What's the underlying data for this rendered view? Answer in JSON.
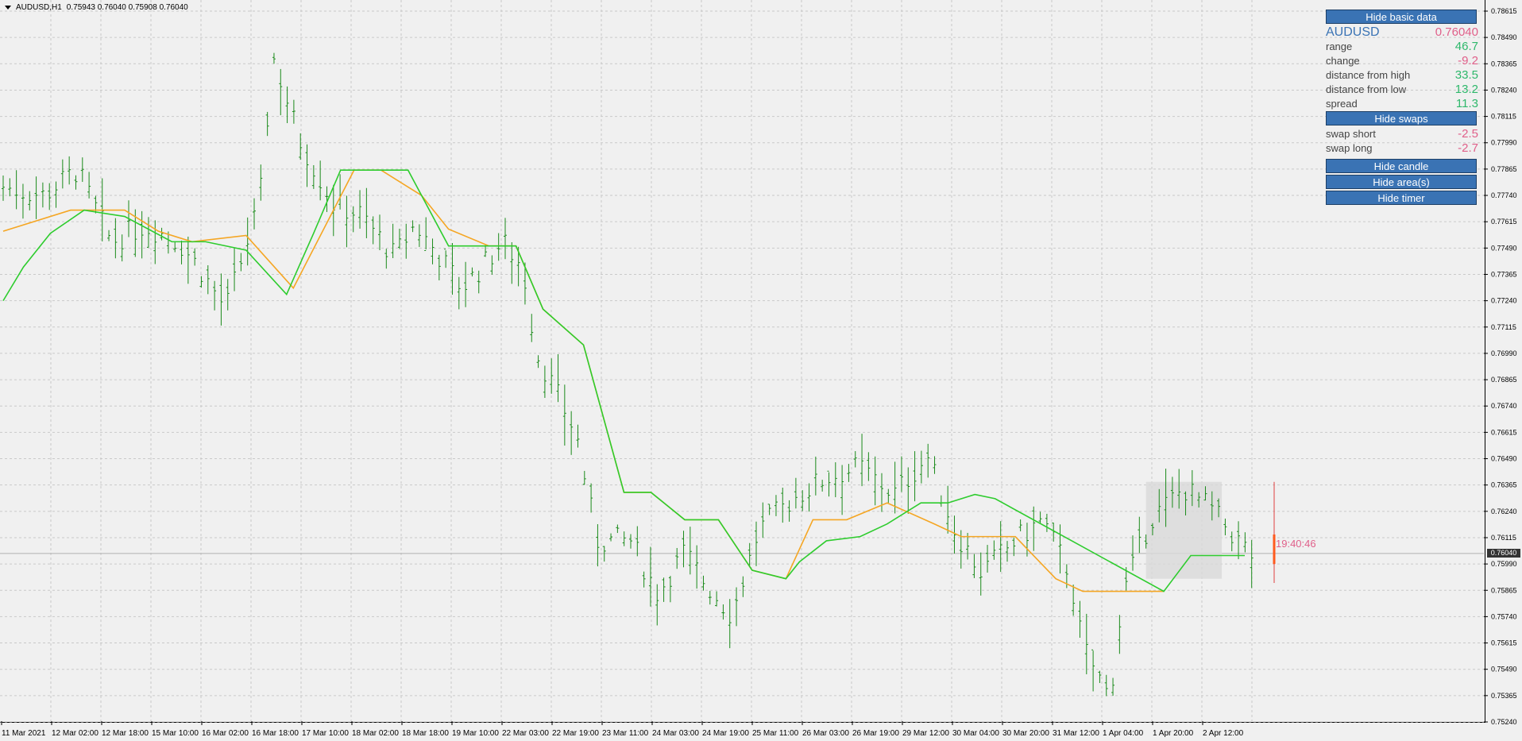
{
  "header": {
    "symbol_timeframe": "AUDUSD,H1",
    "ohlc": "0.75943 0.76040 0.75908 0.76040"
  },
  "panel": {
    "hide_basic_data": "Hide basic data",
    "symbol": "AUDUSD",
    "price": "0.76040",
    "rows": [
      {
        "label": "range",
        "value": "46.7",
        "tone": "pos"
      },
      {
        "label": "change",
        "value": "-9.2",
        "tone": "neg"
      },
      {
        "label": "distance from high",
        "value": "33.5",
        "tone": "pos"
      },
      {
        "label": "distance from low",
        "value": "13.2",
        "tone": "pos"
      },
      {
        "label": "spread",
        "value": "11.3",
        "tone": "pos"
      }
    ],
    "hide_swaps": "Hide swaps",
    "swaps": [
      {
        "label": "swap short",
        "value": "-2.5",
        "tone": "neg"
      },
      {
        "label": "swap long",
        "value": "-2.7",
        "tone": "neg"
      }
    ],
    "hide_candle": "Hide candle",
    "hide_areas": "Hide area(s)",
    "hide_timer": "Hide timer"
  },
  "timer": "19:40:46",
  "current_price_label": "0.76040",
  "colors": {
    "bars": "#1a8a1a",
    "resistance_line": "#f5a623",
    "support_line": "#2ecc2e",
    "timer": "#e0608a",
    "button": "#3a73b4",
    "background": "#f0f0f0",
    "range_box": "#d9d9d9"
  },
  "chart_data": {
    "type": "line",
    "title": "",
    "grid": true,
    "ylim": [
      0.7524,
      0.78615
    ],
    "y_ticks": [
      "0.78615",
      "0.78490",
      "0.78365",
      "0.78240",
      "0.78115",
      "0.77990",
      "0.77865",
      "0.77740",
      "0.77615",
      "0.77490",
      "0.77365",
      "0.77240",
      "0.77115",
      "0.76990",
      "0.76865",
      "0.76740",
      "0.76615",
      "0.76490",
      "0.76365",
      "0.76240",
      "0.76115",
      "0.75990",
      "0.75865",
      "0.75740",
      "0.75615",
      "0.75490",
      "0.75365",
      "0.75240"
    ],
    "x_ticks": [
      "11 Mar 2021",
      "12 Mar 02:00",
      "12 Mar 18:00",
      "15 Mar 10:00",
      "16 Mar 02:00",
      "16 Mar 18:00",
      "17 Mar 10:00",
      "18 Mar 02:00",
      "18 Mar 18:00",
      "19 Mar 10:00",
      "22 Mar 03:00",
      "22 Mar 19:00",
      "23 Mar 11:00",
      "24 Mar 03:00",
      "24 Mar 19:00",
      "25 Mar 11:00",
      "26 Mar 03:00",
      "26 Mar 19:00",
      "29 Mar 12:00",
      "30 Mar 04:00",
      "30 Mar 20:00",
      "31 Mar 12:00",
      "1 Apr 04:00",
      "1 Apr 20:00",
      "2 Apr 12:00"
    ],
    "price_path": [
      [
        0,
        0.7778
      ],
      [
        6,
        0.7774
      ],
      [
        11,
        0.7786
      ],
      [
        16,
        0.7752
      ],
      [
        21,
        0.776
      ],
      [
        26,
        0.7752
      ],
      [
        29,
        0.774
      ],
      [
        33,
        0.772
      ],
      [
        38,
        0.777
      ],
      [
        40,
        0.784
      ],
      [
        44,
        0.78
      ],
      [
        49,
        0.777
      ],
      [
        53,
        0.7765
      ],
      [
        58,
        0.7745
      ],
      [
        61,
        0.776
      ],
      [
        64,
        0.7748
      ],
      [
        68,
        0.773
      ],
      [
        71,
        0.774
      ],
      [
        74,
        0.7752
      ],
      [
        77,
        0.774
      ],
      [
        79,
        0.77
      ],
      [
        82,
        0.768
      ],
      [
        85,
        0.766
      ],
      [
        88,
        0.761
      ],
      [
        93,
        0.761
      ],
      [
        97,
        0.7585
      ],
      [
        101,
        0.7605
      ],
      [
        104,
        0.759
      ],
      [
        108,
        0.7575
      ],
      [
        112,
        0.7615
      ],
      [
        117,
        0.763
      ],
      [
        122,
        0.764
      ],
      [
        127,
        0.7645
      ],
      [
        132,
        0.7632
      ],
      [
        137,
        0.765
      ],
      [
        141,
        0.7615
      ],
      [
        145,
        0.7595
      ],
      [
        150,
        0.761
      ],
      [
        154,
        0.762
      ],
      [
        158,
        0.7595
      ],
      [
        160,
        0.756
      ],
      [
        164,
        0.7535
      ],
      [
        166,
        0.7585
      ],
      [
        170,
        0.762
      ],
      [
        175,
        0.7635
      ],
      [
        179,
        0.7625
      ],
      [
        183,
        0.761
      ],
      [
        186,
        0.76
      ]
    ],
    "series": [
      {
        "line": "resistance",
        "color": "#f5a623",
        "points": [
          [
            0,
            0.7757
          ],
          [
            10,
            0.7767
          ],
          [
            18,
            0.7767
          ],
          [
            23,
            0.7757
          ],
          [
            28,
            0.7752
          ],
          [
            36,
            0.7755
          ],
          [
            43,
            0.773
          ],
          [
            52,
            0.7786
          ],
          [
            56,
            0.7786
          ],
          [
            62,
            0.7774
          ],
          [
            66,
            0.7758
          ],
          [
            72,
            0.775
          ],
          [
            76,
            0.775
          ],
          [
            80,
            0.772
          ],
          [
            86,
            0.7703
          ],
          [
            92,
            0.7633
          ],
          [
            96,
            0.7633
          ],
          [
            101,
            0.762
          ],
          [
            106,
            0.762
          ],
          [
            111,
            0.7596
          ],
          [
            116,
            0.7592
          ],
          [
            120,
            0.762
          ],
          [
            125,
            0.762
          ],
          [
            131,
            0.7628
          ],
          [
            138,
            0.7618
          ],
          [
            142,
            0.7612
          ],
          [
            150,
            0.7612
          ],
          [
            156,
            0.7592
          ],
          [
            160,
            0.7586
          ],
          [
            166,
            0.7586
          ],
          [
            172,
            0.7586
          ]
        ]
      },
      {
        "line": "support",
        "color": "#2ecc2e",
        "points": [
          [
            0,
            0.7724
          ],
          [
            3,
            0.774
          ],
          [
            7,
            0.7756
          ],
          [
            12,
            0.7767
          ],
          [
            18,
            0.7764
          ],
          [
            25,
            0.7752
          ],
          [
            30,
            0.7752
          ],
          [
            36,
            0.7748
          ],
          [
            42,
            0.7727
          ],
          [
            46,
            0.7756
          ],
          [
            50,
            0.7786
          ],
          [
            58,
            0.7786
          ],
          [
            60,
            0.7786
          ],
          [
            66,
            0.775
          ],
          [
            72,
            0.775
          ],
          [
            76,
            0.775
          ],
          [
            80,
            0.772
          ],
          [
            86,
            0.7703
          ],
          [
            92,
            0.7633
          ],
          [
            96,
            0.7633
          ],
          [
            101,
            0.762
          ],
          [
            106,
            0.762
          ],
          [
            111,
            0.7596
          ],
          [
            116,
            0.7592
          ],
          [
            118,
            0.76
          ],
          [
            122,
            0.761
          ],
          [
            127,
            0.7612
          ],
          [
            131,
            0.7618
          ],
          [
            136,
            0.7628
          ],
          [
            140,
            0.7628
          ],
          [
            144,
            0.7632
          ],
          [
            147,
            0.763
          ],
          [
            172,
            0.7586
          ],
          [
            176,
            0.7603
          ],
          [
            180,
            0.7603
          ],
          [
            184,
            0.7603
          ]
        ]
      }
    ]
  }
}
